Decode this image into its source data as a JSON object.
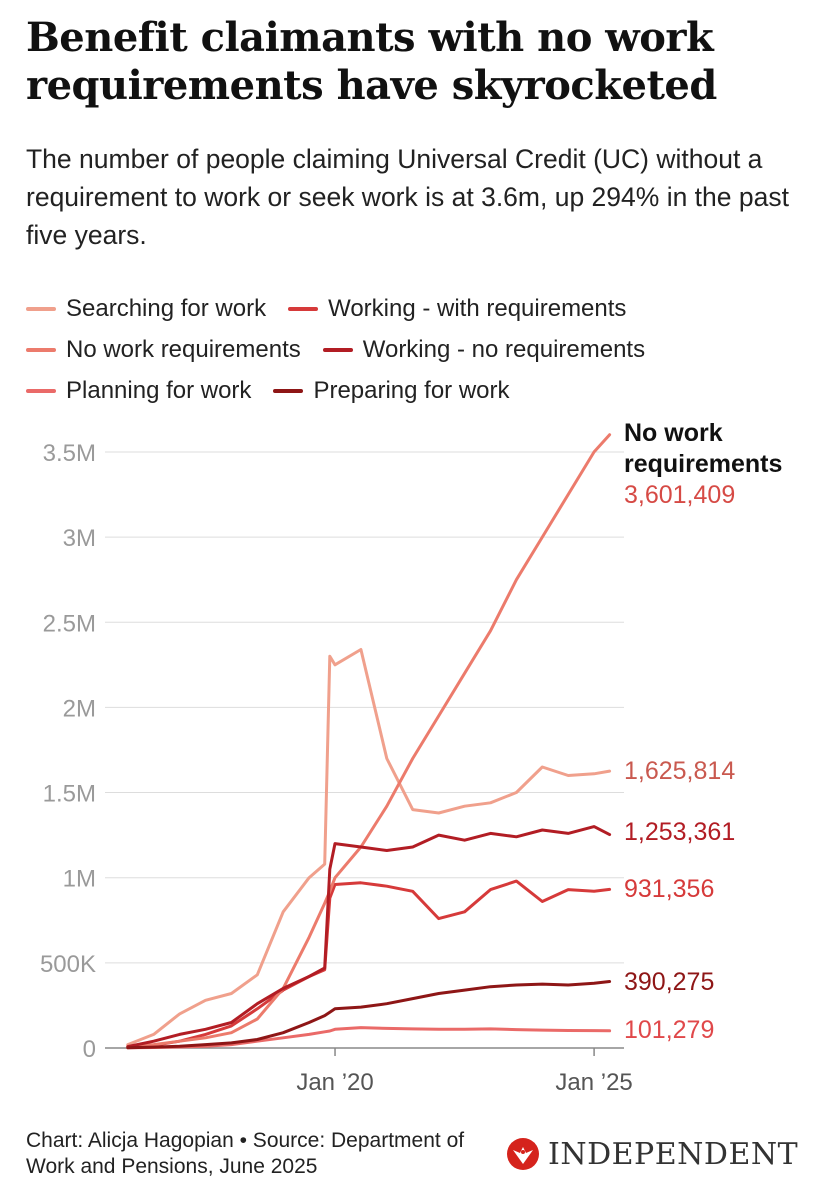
{
  "title": "Benefit claimants with no work requirements have skyrocketed",
  "subtitle": "The number of people claiming Universal Credit (UC) without a requirement to work or seek work is at 3.6m, up 294% in the past five years.",
  "footer": {
    "credit": "Chart: Alicja Hagopian • Source: Department of Work and Pensions, June 2025",
    "brand": "INDEPENDENT",
    "brand_icon": "eagle-logo"
  },
  "legend": [
    {
      "label": "Searching for work",
      "color": "#f0a08c"
    },
    {
      "label": "Working - with requirements",
      "color": "#d63a3a"
    },
    {
      "label": "No work requirements",
      "color": "#ec7b6c"
    },
    {
      "label": "Working - no requirements",
      "color": "#b21d24"
    },
    {
      "label": "Planning for work",
      "color": "#ea6a68"
    },
    {
      "label": "Preparing for work",
      "color": "#8e1616"
    }
  ],
  "chart_data": {
    "type": "line",
    "x_tick_labels": [
      "Jan ’20",
      "Jan ’25"
    ],
    "y_tick_labels": [
      "0",
      "500K",
      "1M",
      "1.5M",
      "2M",
      "2.5M",
      "3M",
      "3.5M"
    ],
    "ylim": [
      0,
      3600000
    ],
    "x": [
      2016.0,
      2016.5,
      2017.0,
      2017.5,
      2018.0,
      2018.5,
      2019.0,
      2019.5,
      2019.8,
      2019.9,
      2020.0,
      2020.5,
      2021.0,
      2021.5,
      2022.0,
      2022.5,
      2023.0,
      2023.5,
      2024.0,
      2024.5,
      2025.0,
      2025.3
    ],
    "series": [
      {
        "name": "Searching for work",
        "color": "#f0a08c",
        "end_label": "1,625,814",
        "values": [
          20000,
          80000,
          200000,
          280000,
          320000,
          430000,
          800000,
          1000000,
          1080000,
          2300000,
          2250000,
          2340000,
          1700000,
          1400000,
          1380000,
          1420000,
          1440000,
          1500000,
          1650000,
          1600000,
          1610000,
          1625814
        ]
      },
      {
        "name": "No work requirements",
        "color": "#ec7b6c",
        "end_label": "3,601,409",
        "values": [
          10000,
          20000,
          40000,
          60000,
          90000,
          170000,
          350000,
          650000,
          850000,
          920000,
          1000000,
          1180000,
          1420000,
          1700000,
          1950000,
          2200000,
          2450000,
          2750000,
          3000000,
          3250000,
          3500000,
          3601409
        ]
      },
      {
        "name": "Working - with requirements",
        "color": "#d63a3a",
        "end_label": "931,356",
        "values": [
          5000,
          15000,
          40000,
          80000,
          130000,
          230000,
          340000,
          420000,
          460000,
          880000,
          960000,
          970000,
          950000,
          920000,
          760000,
          800000,
          930000,
          980000,
          860000,
          930000,
          920000,
          931356
        ]
      },
      {
        "name": "Working - no requirements",
        "color": "#b21d24",
        "end_label": "1,253,361",
        "values": [
          8000,
          40000,
          80000,
          110000,
          150000,
          260000,
          350000,
          420000,
          470000,
          1050000,
          1200000,
          1180000,
          1160000,
          1180000,
          1250000,
          1220000,
          1260000,
          1240000,
          1280000,
          1260000,
          1300000,
          1253361
        ]
      },
      {
        "name": "Planning for work",
        "color": "#ea6a68",
        "end_label": "101,279",
        "values": [
          1000,
          3000,
          6000,
          10000,
          20000,
          40000,
          60000,
          80000,
          95000,
          100000,
          110000,
          120000,
          115000,
          112000,
          110000,
          110000,
          112000,
          108000,
          105000,
          103000,
          102000,
          101279
        ]
      },
      {
        "name": "Preparing for work",
        "color": "#8e1616",
        "end_label": "390,275",
        "values": [
          2000,
          5000,
          10000,
          20000,
          30000,
          50000,
          90000,
          150000,
          190000,
          210000,
          230000,
          240000,
          260000,
          290000,
          320000,
          340000,
          360000,
          370000,
          375000,
          370000,
          380000,
          390275
        ]
      }
    ],
    "annotation": {
      "series": "No work requirements",
      "text": "No work requirements",
      "value": "3,601,409"
    }
  }
}
